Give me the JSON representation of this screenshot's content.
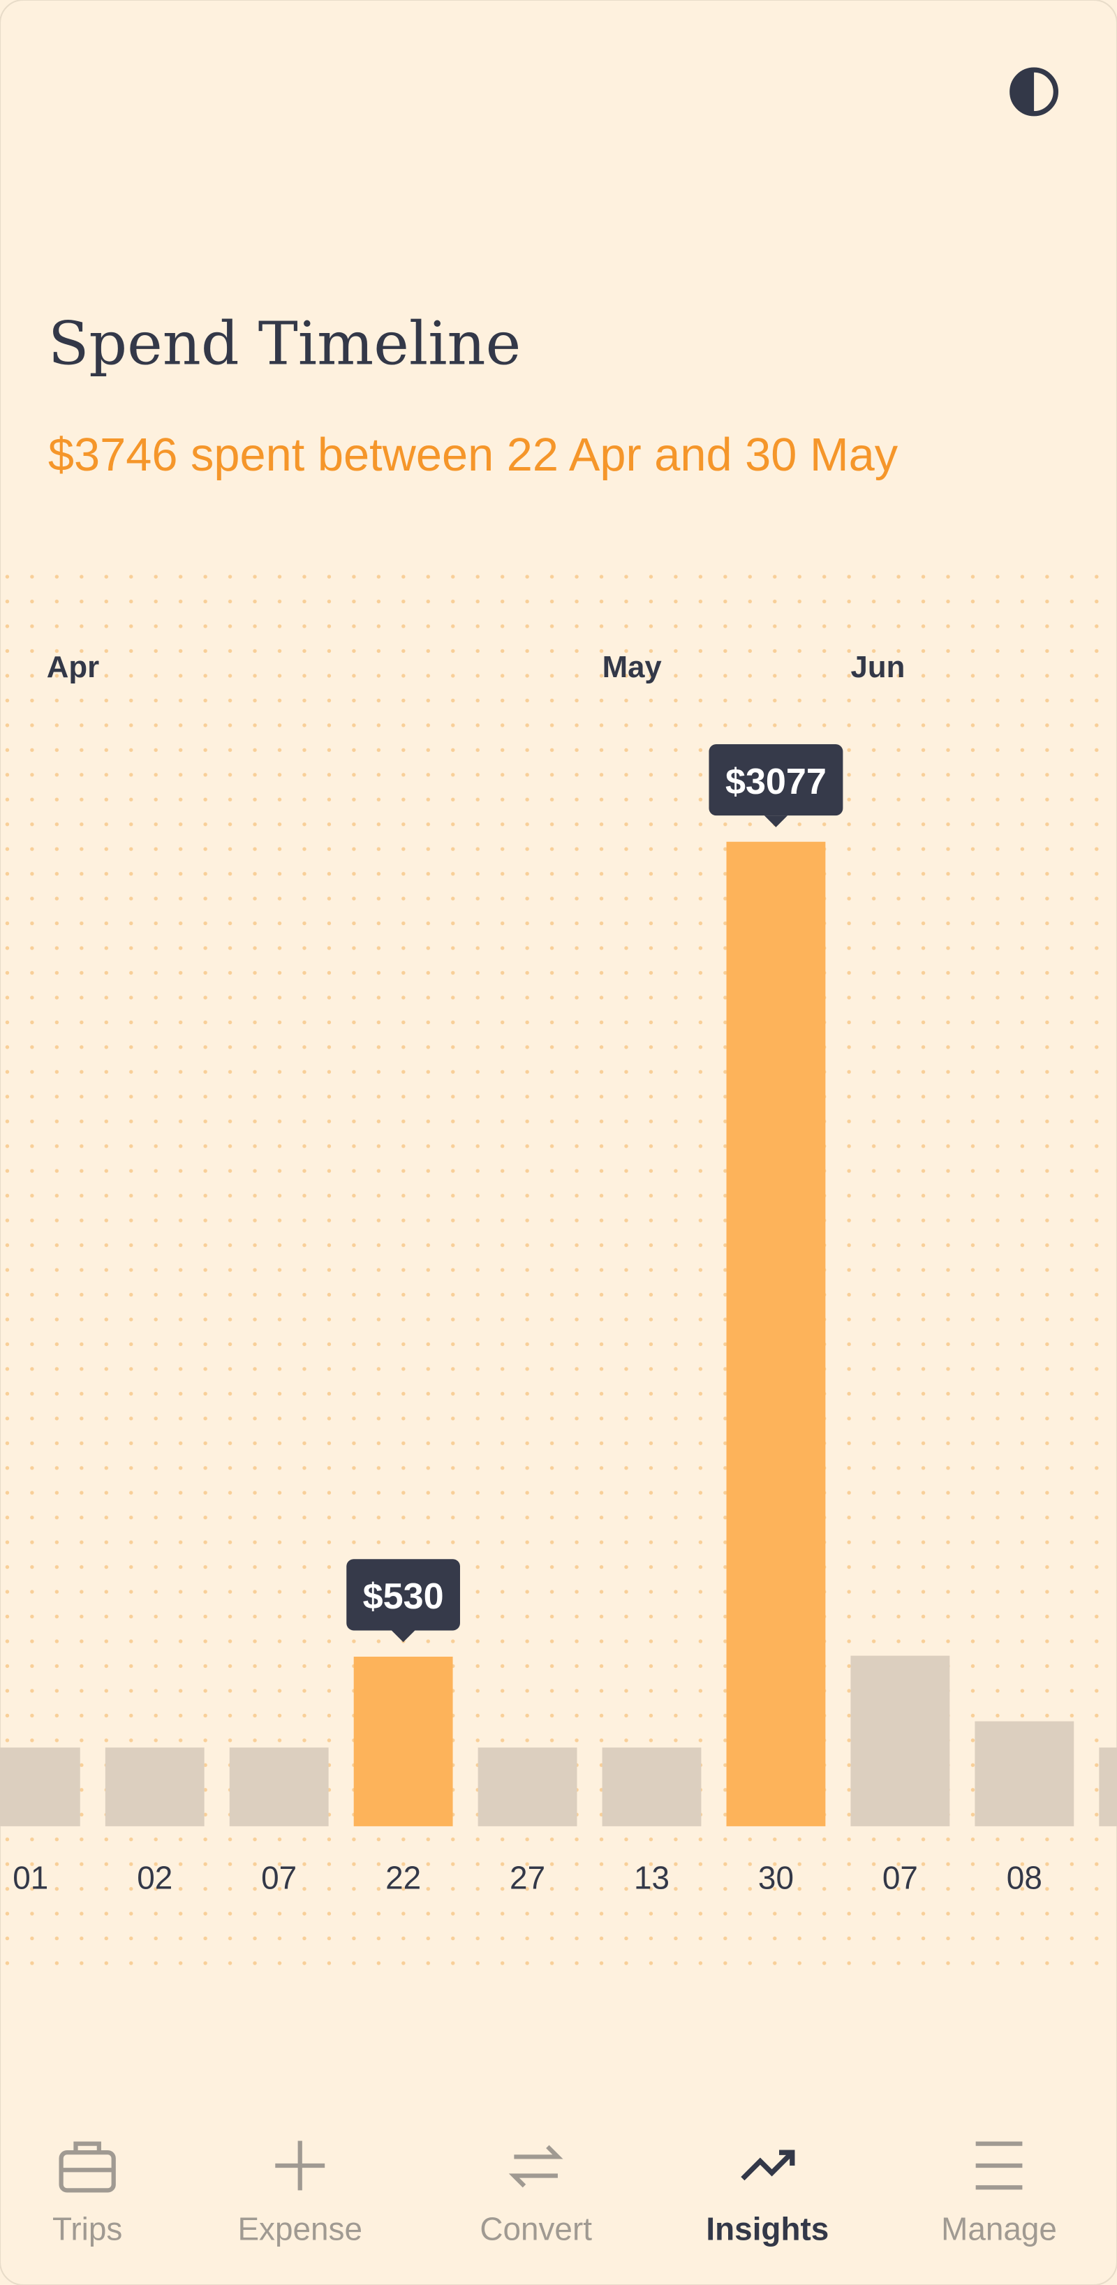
{
  "header": {
    "title": "Spend Timeline",
    "subtitle": "$3746 spent between 22 Apr and 30 May"
  },
  "chart_data": {
    "type": "bar",
    "month_labels": [
      "Apr",
      null,
      null,
      null,
      null,
      "May",
      null,
      "Jun",
      null,
      null
    ],
    "categories": [
      "01",
      "02",
      "07",
      "22",
      "27",
      "13",
      "30",
      "07",
      "08",
      null
    ],
    "values": [
      246,
      246,
      246,
      530,
      246,
      246,
      3077,
      533,
      328,
      246
    ],
    "value_labels": [
      null,
      null,
      null,
      "$530",
      null,
      null,
      "$3077",
      null,
      null,
      null
    ],
    "colors": [
      "#dccfbf",
      "#dccfbf",
      "#dccfbf",
      "#fdb35a",
      "#dccfbf",
      "#dccfbf",
      "#fdb35a",
      "#dccfbf",
      "#dccfbf",
      "#dccfbf"
    ]
  },
  "nav": {
    "items": [
      "Trips",
      "Expense",
      "Convert",
      "Insights",
      "Manage"
    ],
    "active_index": 3
  }
}
